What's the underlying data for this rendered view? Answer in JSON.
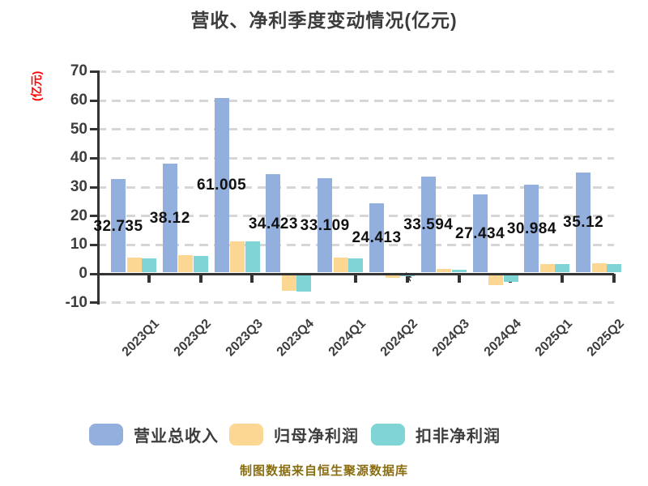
{
  "title": "营收、净利季度变动情况(亿元)",
  "y_axis_unit": "(亿元)",
  "footer": "制图数据来自恒生聚源数据库",
  "colors": {
    "revenue_bar": "#93AFDD",
    "net_profit_bar": "#FBD793",
    "deducted_profit_bar": "#7FD4D6",
    "axis": "#333333",
    "gridline": "#D6D6D6",
    "title_text": "#3C3C3C",
    "value_label_text": "#111111",
    "y_unit_text": "#FF0000",
    "footer_text": "#8A6D10"
  },
  "chart_data": {
    "type": "bar",
    "title": "营收、净利季度变动情况(亿元)",
    "ylabel": "(亿元)",
    "xlabel": "",
    "grid": "horizontal-dashed",
    "legend_position": "bottom",
    "ylim": [
      -10,
      70
    ],
    "y_ticks": [
      70,
      60,
      50,
      40,
      30,
      20,
      10,
      0,
      -10
    ],
    "categories": [
      "2023Q1",
      "2023Q2",
      "2023Q3",
      "2023Q4",
      "2024Q1",
      "2024Q2",
      "2024Q3",
      "2024Q4",
      "2025Q1",
      "2025Q2"
    ],
    "series": [
      {
        "name": "营业总收入",
        "color": "#93AFDD",
        "values": [
          32.735,
          38.12,
          61.005,
          34.423,
          33.109,
          24.413,
          33.594,
          27.434,
          30.984,
          35.12
        ],
        "data_labels": [
          "32.735",
          "38.12",
          "61.005",
          "34.423",
          "33.109",
          "24.413",
          "33.594",
          "27.434",
          "30.984",
          "35.12"
        ]
      },
      {
        "name": "归母净利润",
        "color": "#FBD793",
        "values": [
          5.5,
          6.5,
          11.2,
          -5.9,
          5.5,
          -1.3,
          1.6,
          -3.9,
          3.3,
          3.6
        ],
        "data_labels": []
      },
      {
        "name": "扣非净利润",
        "color": "#7FD4D6",
        "values": [
          5.3,
          6.1,
          11.1,
          -6.2,
          5.2,
          -0.9,
          1.5,
          -2.8,
          3.4,
          3.4
        ],
        "data_labels": []
      }
    ]
  }
}
